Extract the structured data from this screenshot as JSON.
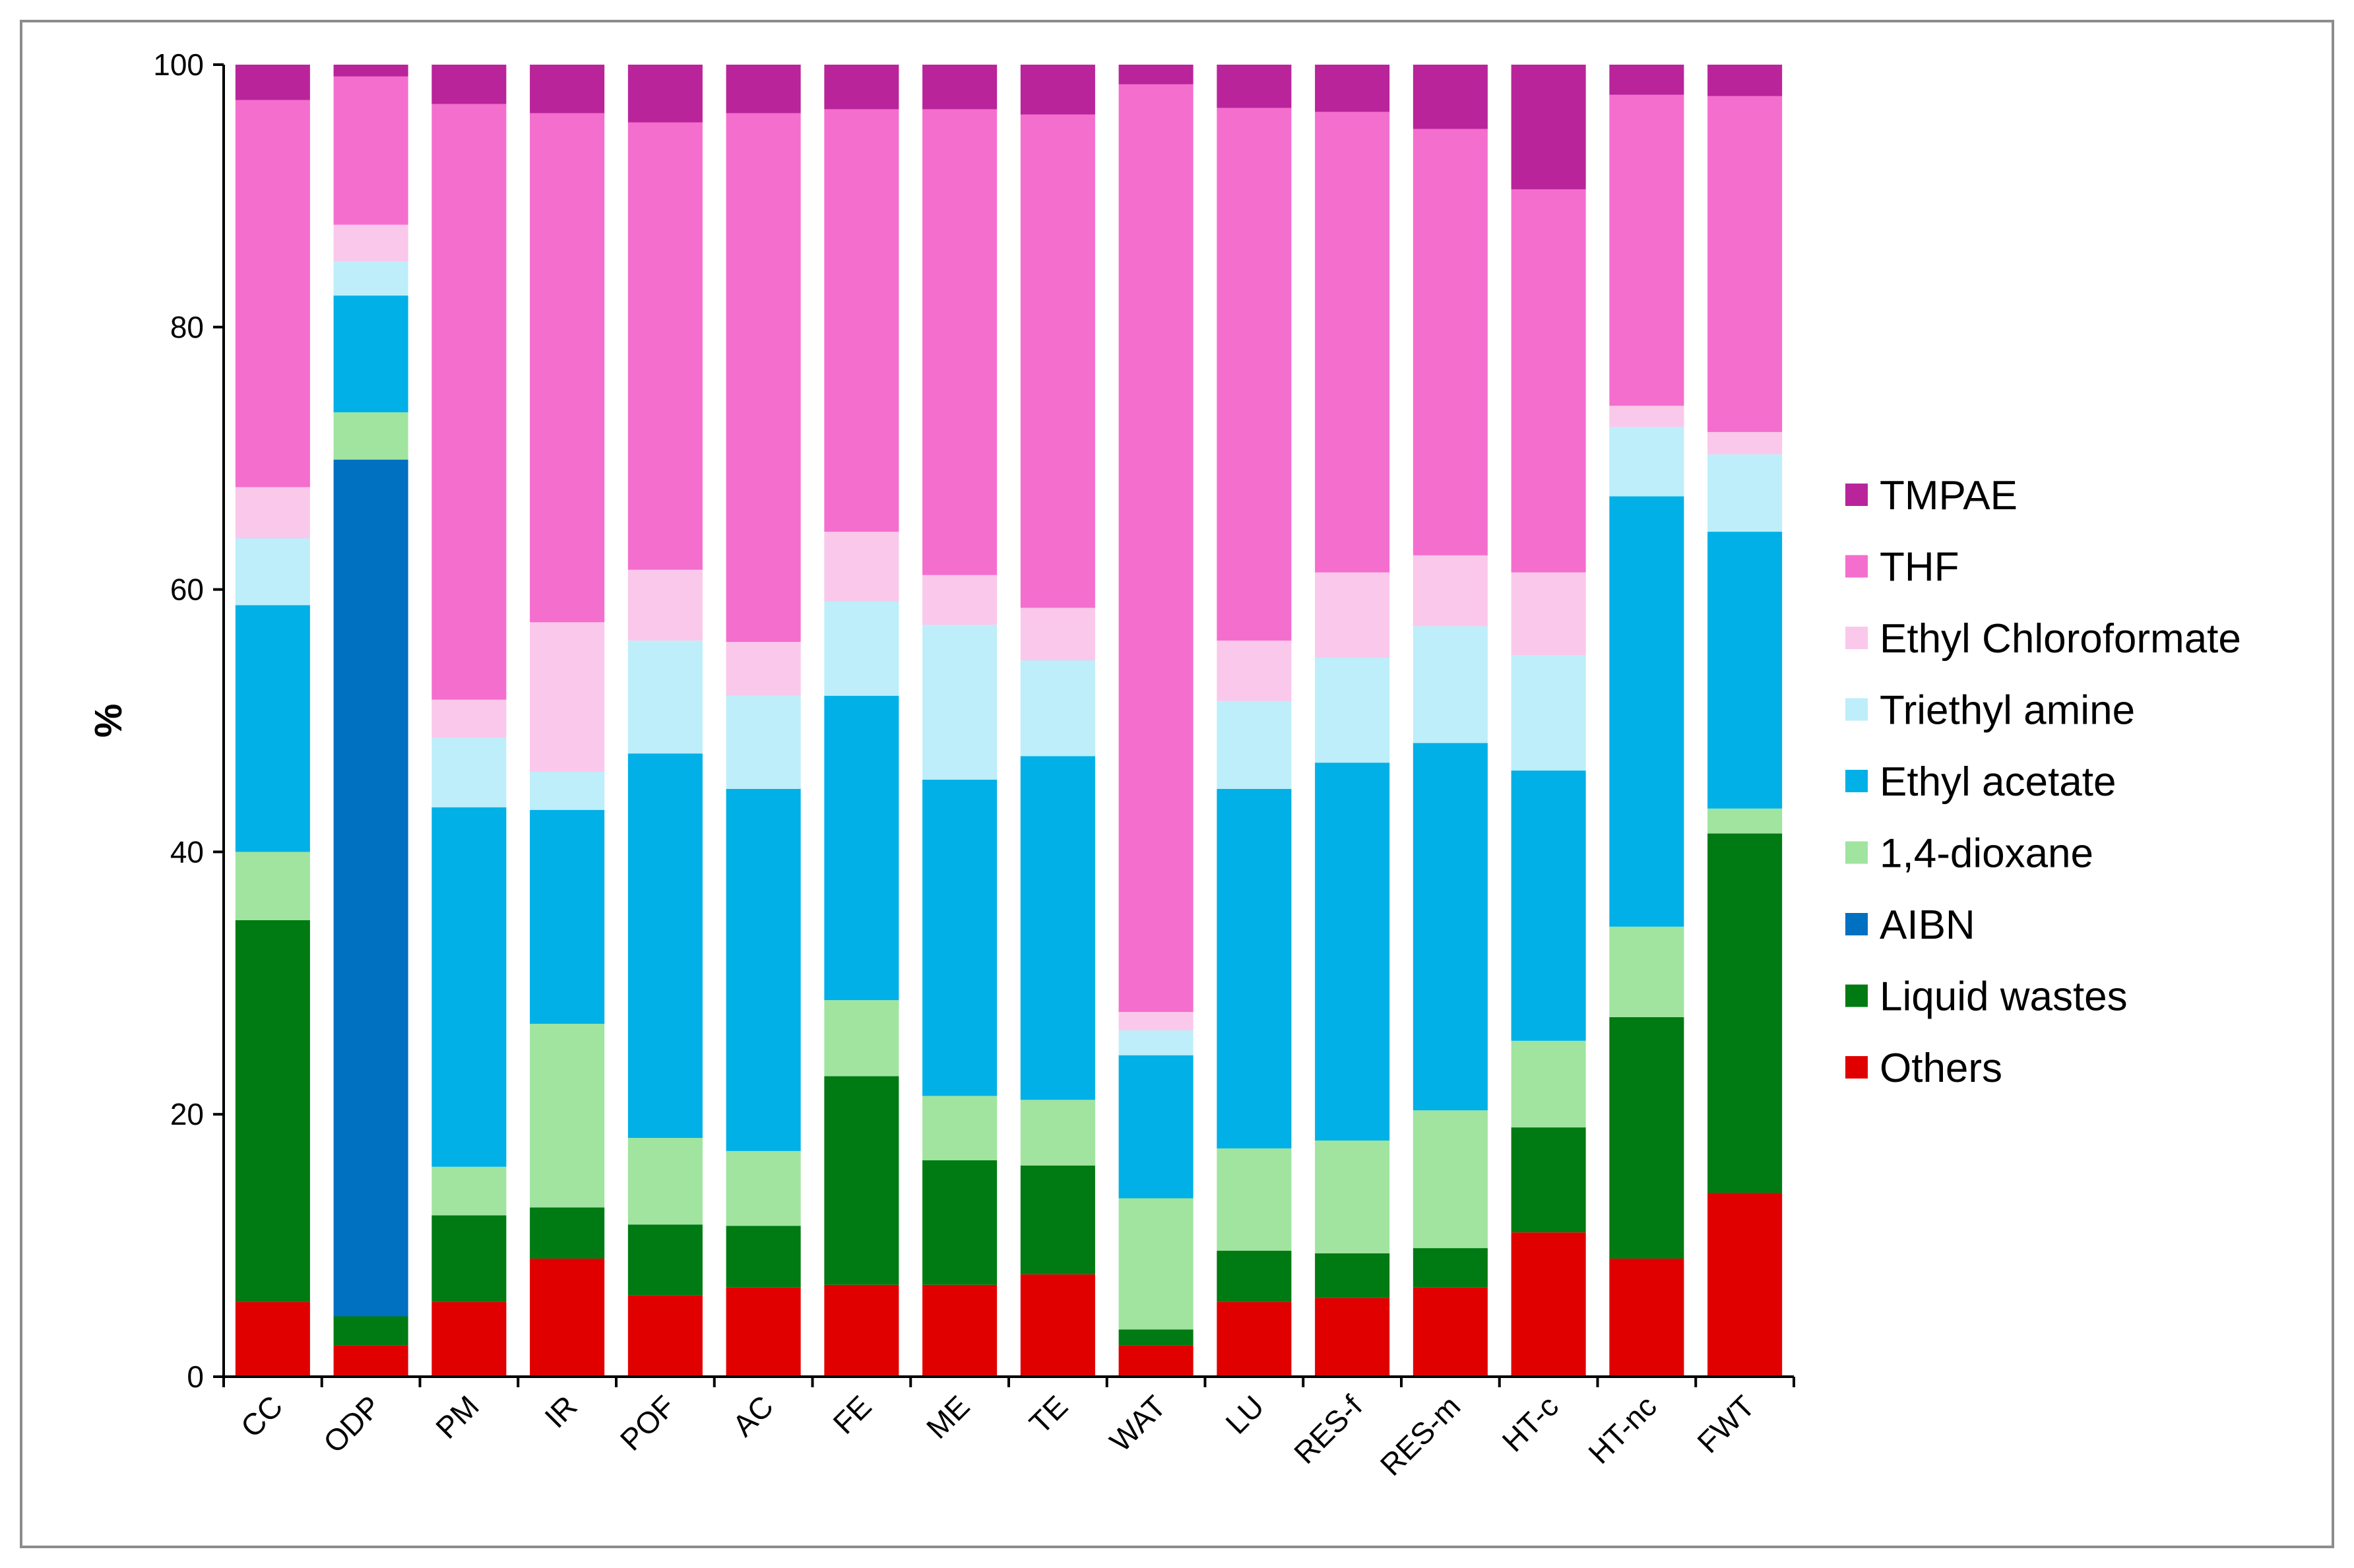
{
  "chart_data": {
    "type": "bar",
    "stacked": true,
    "title": "",
    "xlabel": "",
    "ylabel": "%",
    "ylim": [
      0,
      100
    ],
    "yticks": [
      0,
      20,
      40,
      60,
      80,
      100
    ],
    "grid": false,
    "legend_position": "right",
    "categories": [
      "CC",
      "ODP",
      "PM",
      "IR",
      "POF",
      "AC",
      "FE",
      "ME",
      "TE",
      "WAT",
      "LU",
      "RES-f",
      "RES-m",
      "HT-c",
      "HT-nc",
      "FWT"
    ],
    "series": [
      {
        "name": "Others",
        "color": "#E00000",
        "values": [
          5.7,
          2.4,
          5.7,
          9.0,
          6.2,
          6.8,
          7.0,
          7.0,
          7.8,
          2.4,
          5.7,
          6.0,
          6.8,
          11.0,
          9.0,
          14.0
        ]
      },
      {
        "name": "Liquid wastes",
        "color": "#007A12",
        "values": [
          29.1,
          2.2,
          6.6,
          3.9,
          5.4,
          4.7,
          15.9,
          9.5,
          8.3,
          1.2,
          3.9,
          3.4,
          3.0,
          8.0,
          18.4,
          27.4
        ]
      },
      {
        "name": "AIBN",
        "color": "#0070C0",
        "values": [
          0,
          65.3,
          0,
          0,
          0,
          0,
          0,
          0,
          0,
          0,
          0,
          0,
          0,
          0,
          0,
          0
        ]
      },
      {
        "name": "1,4-dioxane",
        "color": "#A0E4A0",
        "values": [
          5.2,
          3.6,
          3.7,
          14.0,
          6.6,
          5.7,
          5.8,
          4.9,
          5.0,
          10.0,
          7.8,
          8.6,
          10.5,
          6.6,
          6.9,
          1.9
        ]
      },
      {
        "name": "Ethyl acetate",
        "color": "#00B0E6",
        "values": [
          18.8,
          8.9,
          27.4,
          16.3,
          29.3,
          27.6,
          23.2,
          24.1,
          26.2,
          10.9,
          27.4,
          28.8,
          28.0,
          20.6,
          32.8,
          21.1
        ]
      },
      {
        "name": "Triethyl amine",
        "color": "#BDEEFA",
        "values": [
          5.1,
          2.6,
          5.3,
          2.9,
          8.6,
          7.1,
          7.2,
          11.8,
          7.3,
          1.9,
          6.7,
          8.0,
          8.9,
          8.8,
          5.3,
          5.9
        ]
      },
      {
        "name": "Ethyl Chloroformate",
        "color": "#FAC8EA",
        "values": [
          3.9,
          2.8,
          2.9,
          11.4,
          5.4,
          4.1,
          5.3,
          3.8,
          4.0,
          1.4,
          4.6,
          6.5,
          5.4,
          6.3,
          1.6,
          1.7
        ]
      },
      {
        "name": "THF",
        "color": "#F46ECE",
        "values": [
          29.5,
          11.3,
          45.4,
          38.8,
          34.1,
          40.3,
          32.2,
          35.5,
          37.6,
          70.7,
          40.6,
          35.1,
          32.5,
          29.2,
          23.7,
          25.6
        ]
      },
      {
        "name": "TMPAE",
        "color": "#B9249A",
        "values": [
          2.7,
          0.9,
          3.0,
          3.7,
          4.4,
          3.7,
          3.4,
          3.4,
          3.8,
          1.5,
          3.3,
          3.6,
          4.9,
          9.5,
          2.3,
          2.4
        ]
      }
    ],
    "legend_order": [
      "TMPAE",
      "THF",
      "Ethyl Chloroformate",
      "Triethyl amine",
      "Ethyl acetate",
      "1,4-dioxane",
      "AIBN",
      "Liquid wastes",
      "Others"
    ]
  }
}
